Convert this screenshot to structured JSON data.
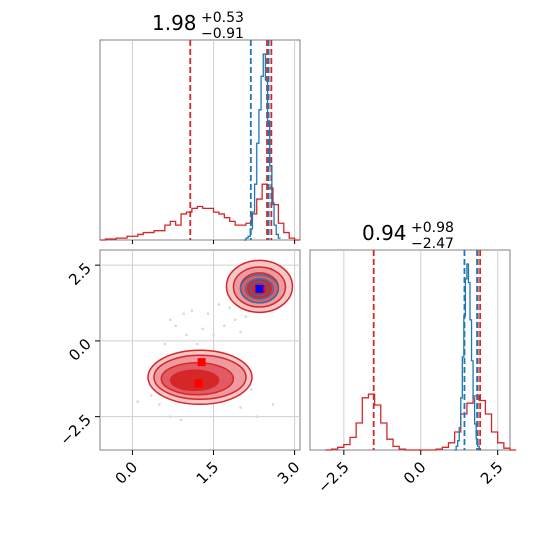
{
  "chart_data": [
    {
      "type": "histogram",
      "panel": "marginal-param-1",
      "title": {
        "value": "1.98",
        "plus": "+0.53",
        "minus": "−0.91"
      },
      "xlim": [
        -0.6,
        3.1
      ],
      "xticks": [
        0.0,
        1.5,
        3.0
      ],
      "grid": true,
      "series": [
        {
          "color": "#d62728",
          "style": "step",
          "bins": [
            [
              -0.6,
              0
            ],
            [
              -0.5,
              0.5
            ],
            [
              -0.4,
              0.5
            ],
            [
              -0.3,
              1
            ],
            [
              -0.2,
              1
            ],
            [
              -0.1,
              2
            ],
            [
              0.0,
              2
            ],
            [
              0.1,
              3
            ],
            [
              0.2,
              4
            ],
            [
              0.3,
              4
            ],
            [
              0.4,
              5
            ],
            [
              0.5,
              5
            ],
            [
              0.6,
              8
            ],
            [
              0.7,
              10
            ],
            [
              0.8,
              8
            ],
            [
              0.9,
              14
            ],
            [
              1.0,
              15
            ],
            [
              1.1,
              17
            ],
            [
              1.2,
              18
            ],
            [
              1.3,
              17
            ],
            [
              1.4,
              17
            ],
            [
              1.5,
              15
            ],
            [
              1.6,
              14
            ],
            [
              1.7,
              12
            ],
            [
              1.8,
              10
            ],
            [
              1.9,
              8
            ],
            [
              2.0,
              8
            ],
            [
              2.1,
              9
            ],
            [
              2.2,
              14
            ],
            [
              2.3,
              22
            ],
            [
              2.4,
              30
            ],
            [
              2.5,
              28
            ],
            [
              2.6,
              19
            ],
            [
              2.7,
              9
            ],
            [
              2.8,
              4
            ],
            [
              2.9,
              1
            ],
            [
              3.0,
              0
            ]
          ],
          "vlines": [
            1.07,
            2.49,
            2.57
          ]
        },
        {
          "color": "#1f77b4",
          "style": "step",
          "bins": [
            [
              2.06,
              0
            ],
            [
              2.1,
              1
            ],
            [
              2.14,
              2
            ],
            [
              2.18,
              6
            ],
            [
              2.22,
              15
            ],
            [
              2.26,
              30
            ],
            [
              2.3,
              52
            ],
            [
              2.34,
              70
            ],
            [
              2.38,
              88
            ],
            [
              2.42,
              100
            ],
            [
              2.46,
              86
            ],
            [
              2.5,
              64
            ],
            [
              2.54,
              40
            ],
            [
              2.58,
              20
            ],
            [
              2.62,
              8
            ],
            [
              2.66,
              3
            ],
            [
              2.7,
              1
            ]
          ],
          "vlines": [
            2.19,
            2.52
          ]
        }
      ]
    },
    {
      "type": "contour",
      "panel": "joint-param-1-param-2",
      "xlim": [
        -0.6,
        3.1
      ],
      "ylim": [
        -3.6,
        3.0
      ],
      "xticks": [
        0.0,
        1.5,
        3.0
      ],
      "yticks": [
        -2.5,
        0.0,
        2.5
      ],
      "grid": true,
      "series": [
        {
          "color": "#d62728",
          "mode": [
            1.25,
            -1.2
          ],
          "markers": [
            [
              1.28,
              -0.7
            ],
            [
              1.22,
              -1.4
            ]
          ]
        },
        {
          "color": "#d62728",
          "mode": [
            2.35,
            1.8
          ],
          "markers": [
            [
              2.38,
              1.7
            ]
          ]
        },
        {
          "color": "#1f77b4",
          "mode": [
            2.35,
            1.75
          ],
          "markers": [
            [
              2.35,
              1.72
            ]
          ]
        }
      ]
    },
    {
      "type": "histogram",
      "panel": "marginal-param-2",
      "title": {
        "value": "0.94",
        "plus": "+0.98",
        "minus": "−2.47"
      },
      "xlim": [
        -3.6,
        2.9
      ],
      "xticks": [
        -2.5,
        0.0,
        2.5
      ],
      "grid": true,
      "series": [
        {
          "color": "#d62728",
          "style": "step",
          "bins": [
            [
              -3.1,
              0
            ],
            [
              -2.9,
              1
            ],
            [
              -2.7,
              3
            ],
            [
              -2.5,
              6
            ],
            [
              -2.3,
              14
            ],
            [
              -2.1,
              30
            ],
            [
              -1.9,
              58
            ],
            [
              -1.7,
              62
            ],
            [
              -1.5,
              50
            ],
            [
              -1.3,
              30
            ],
            [
              -1.1,
              12
            ],
            [
              -0.9,
              4
            ],
            [
              -0.7,
              1
            ],
            [
              -0.5,
              0
            ],
            [
              0.3,
              0
            ],
            [
              0.5,
              1
            ],
            [
              0.7,
              3
            ],
            [
              0.9,
              8
            ],
            [
              1.1,
              20
            ],
            [
              1.3,
              40
            ],
            [
              1.5,
              52
            ],
            [
              1.7,
              60
            ],
            [
              1.9,
              55
            ],
            [
              2.1,
              40
            ],
            [
              2.3,
              20
            ],
            [
              2.5,
              8
            ],
            [
              2.7,
              2
            ],
            [
              2.9,
              0
            ]
          ],
          "vlines": [
            -1.53,
            1.85,
            1.93
          ]
        },
        {
          "color": "#1f77b4",
          "style": "step",
          "bins": [
            [
              1.1,
              0
            ],
            [
              1.15,
              2
            ],
            [
              1.2,
              5
            ],
            [
              1.25,
              12
            ],
            [
              1.3,
              28
            ],
            [
              1.35,
              50
            ],
            [
              1.4,
              72
            ],
            [
              1.45,
              92
            ],
            [
              1.5,
              100
            ],
            [
              1.55,
              90
            ],
            [
              1.6,
              70
            ],
            [
              1.65,
              48
            ],
            [
              1.7,
              28
            ],
            [
              1.75,
              14
            ],
            [
              1.8,
              6
            ],
            [
              1.85,
              2
            ],
            [
              1.9,
              0
            ]
          ],
          "vlines": [
            1.42,
            1.83
          ]
        }
      ]
    }
  ]
}
